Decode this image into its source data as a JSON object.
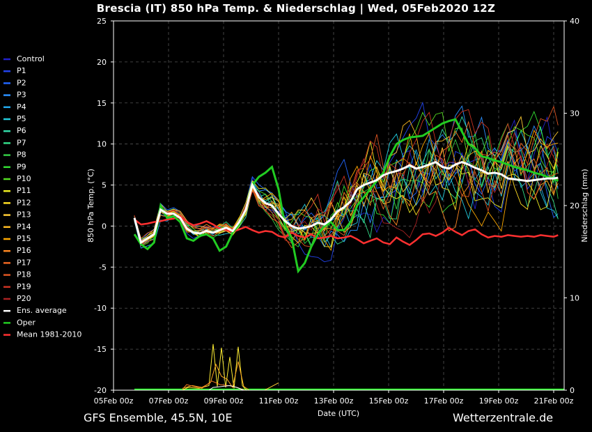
{
  "title": "Brescia  (IT)  850 hPa Temp. & Niederschlag | Wed, 05Feb2020 12Z",
  "footer_left": "GFS Ensemble, 45.5N, 10E",
  "footer_right": "Wetterzentrale.de",
  "colors": {
    "background": "#000000",
    "grid": "#555555",
    "oper": "#22cc22",
    "ens_average": "#ffffff",
    "mean": "#ff3030"
  },
  "chart_data": {
    "type": "line",
    "xlabel": "Date (UTC)",
    "ylabel": "850 hPa Temp. (°C)",
    "y2label": "Niederschlag (mm)",
    "x_tick_labels": [
      "05Feb 00z",
      "07Feb 00z",
      "09Feb 00z",
      "11Feb 00z",
      "13Feb 00z",
      "15Feb 00z",
      "17Feb 00z",
      "19Feb 00z",
      "21Feb 00z"
    ],
    "x_range_hours": [
      0,
      400
    ],
    "ylim": [
      -20,
      25
    ],
    "y_ticks": [
      -20,
      -15,
      -10,
      -5,
      0,
      5,
      10,
      15,
      20,
      25
    ],
    "y2lim": [
      0,
      40
    ],
    "y2_ticks": [
      0,
      10,
      20,
      30,
      40
    ],
    "grid": true,
    "legend_position": "left",
    "legend": [
      {
        "label": "Control",
        "color": "#2222cc"
      },
      {
        "label": "P1",
        "color": "#2244ee"
      },
      {
        "label": "P2",
        "color": "#2266ff"
      },
      {
        "label": "P3",
        "color": "#2a90ff"
      },
      {
        "label": "P4",
        "color": "#22aaee"
      },
      {
        "label": "P5",
        "color": "#22ccdd"
      },
      {
        "label": "P6",
        "color": "#33ddaa"
      },
      {
        "label": "P7",
        "color": "#33dd88"
      },
      {
        "label": "P8",
        "color": "#33cc44"
      },
      {
        "label": "P9",
        "color": "#33dd33"
      },
      {
        "label": "P10",
        "color": "#55dd22"
      },
      {
        "label": "P11",
        "color": "#eeee22"
      },
      {
        "label": "P12",
        "color": "#ffdd22"
      },
      {
        "label": "P13",
        "color": "#ffcc33"
      },
      {
        "label": "P14",
        "color": "#ffbb22"
      },
      {
        "label": "P15",
        "color": "#ffaa00"
      },
      {
        "label": "P16",
        "color": "#ff8822"
      },
      {
        "label": "P17",
        "color": "#ee6622"
      },
      {
        "label": "P18",
        "color": "#dd5522"
      },
      {
        "label": "P19",
        "color": "#cc3322"
      },
      {
        "label": "P20",
        "color": "#aa2222"
      },
      {
        "label": "Ens. average",
        "color": "#ffffff"
      },
      {
        "label": "Oper",
        "color": "#22cc22"
      },
      {
        "label": "Mean 1981-2010",
        "color": "#ff3030"
      }
    ],
    "x_hours": [
      12,
      18,
      24,
      30,
      36,
      42,
      48,
      54,
      60,
      66,
      72,
      78,
      84,
      90,
      96,
      102,
      108,
      114,
      120,
      126,
      132,
      138,
      144,
      150,
      156,
      162,
      168,
      174,
      180,
      186,
      192,
      198,
      204,
      210,
      216,
      222,
      228,
      234,
      240,
      246,
      252,
      258,
      264,
      270,
      276,
      282,
      288,
      294,
      300,
      306,
      312,
      318,
      324,
      330,
      336,
      342,
      348,
      354,
      360,
      366,
      372,
      378,
      384,
      390,
      396,
      400
    ],
    "series": [
      {
        "name": "Ens. average",
        "values": [
          1.0,
          -2.0,
          -1.5,
          -1.0,
          2.0,
          1.5,
          1.5,
          1.0,
          -0.3,
          -0.8,
          -0.9,
          -0.6,
          -0.8,
          -0.5,
          -0.2,
          -0.6,
          0.5,
          2.0,
          5.0,
          3.5,
          2.8,
          2.5,
          1.5,
          0.6,
          0.0,
          -0.3,
          -0.2,
          0.0,
          0.4,
          0.2,
          0.8,
          1.8,
          2.3,
          3.0,
          4.5,
          5.0,
          5.3,
          5.6,
          6.2,
          6.5,
          6.7,
          7.0,
          7.4,
          7.0,
          7.2,
          7.5,
          7.8,
          7.2,
          7.0,
          7.5,
          7.8,
          7.5,
          7.1,
          6.8,
          6.4,
          6.5,
          6.3,
          5.8,
          5.7,
          5.6,
          5.5,
          5.6,
          5.7,
          5.8,
          5.8,
          5.9
        ]
      },
      {
        "name": "Oper",
        "values": [
          -1.0,
          -2.2,
          -2.8,
          -2.0,
          2.5,
          1.0,
          1.2,
          0.5,
          -1.5,
          -1.8,
          -1.2,
          -1.0,
          -1.5,
          -3.0,
          -2.5,
          -0.8,
          0.2,
          2.0,
          5.0,
          6.0,
          6.5,
          7.2,
          4.5,
          0.0,
          -1.5,
          -5.5,
          -4.5,
          -2.5,
          -1.0,
          0.0,
          0.5,
          -0.5,
          -0.5,
          0.5,
          2.5,
          3.5,
          4.5,
          5.5,
          6.5,
          8.5,
          10.0,
          10.5,
          10.8,
          10.9,
          11.0,
          11.5,
          12.0,
          12.5,
          12.8,
          13.0,
          11.5,
          10.0,
          9.5,
          8.5,
          8.3,
          8.0,
          7.8,
          7.5,
          7.2,
          7.0,
          6.8,
          6.5,
          6.3,
          6.0,
          5.8,
          5.5
        ]
      },
      {
        "name": "Mean 1981-2010",
        "values": [
          0.8,
          0.2,
          0.3,
          0.5,
          0.6,
          0.8,
          0.9,
          1.2,
          0.5,
          0.1,
          0.3,
          0.6,
          0.2,
          -0.3,
          -0.5,
          -0.7,
          -0.4,
          -0.1,
          -0.5,
          -0.8,
          -0.6,
          -0.7,
          -1.2,
          -1.4,
          -0.8,
          -1.2,
          -1.4,
          -1.0,
          -1.5,
          -1.4,
          -1.2,
          -1.5,
          -1.4,
          -1.2,
          -1.6,
          -2.1,
          -1.8,
          -1.5,
          -2.0,
          -2.2,
          -1.4,
          -1.9,
          -2.3,
          -1.7,
          -1.0,
          -0.9,
          -1.2,
          -0.8,
          -0.2,
          -0.7,
          -1.1,
          -0.6,
          -0.4,
          -1.0,
          -1.4,
          -1.2,
          -1.3,
          -1.1,
          -1.2,
          -1.3,
          -1.2,
          -1.3,
          -1.1,
          -1.2,
          -1.3,
          -1.1
        ]
      }
    ],
    "members_note_values": "Individual member spaghetti lines drawn with similar spread around the ensemble average"
  }
}
